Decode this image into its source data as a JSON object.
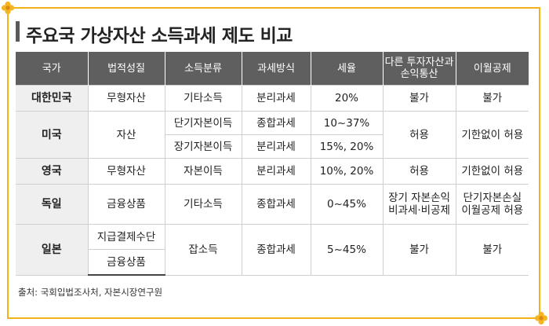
{
  "title": "주요국 가상자산 소득과세 제도 비교",
  "headers": [
    "국가",
    "법적성질",
    "소득분류",
    "과세방식",
    "세율",
    "다른 투자자산과 손익통산",
    "이월공제"
  ],
  "rows": {
    "korea": {
      "country": "대한민국",
      "nature": "무형자산",
      "income": "기타소득",
      "method": "분리과세",
      "rate": "20%",
      "offset": "불가",
      "carry": "불가"
    },
    "usa": {
      "country": "미국",
      "nature": "자산",
      "income_1": "단기자본이득",
      "method_1": "종합과세",
      "rate_1": "10~37%",
      "income_2": "장기자본이득",
      "method_2": "분리과세",
      "rate_2": "15%, 20%",
      "offset": "허용",
      "carry": "기한없이 허용"
    },
    "uk": {
      "country": "영국",
      "nature": "무형자산",
      "income": "자본이득",
      "method": "분리과세",
      "rate": "10%, 20%",
      "offset": "허용",
      "carry": "기한없이 허용"
    },
    "germany": {
      "country": "독일",
      "nature": "금융상품",
      "income": "기타소득",
      "method": "종합과세",
      "rate": "0~45%",
      "offset": "장기 자본손익 비과세·비공제",
      "carry": "단기자본손실 이월공제 허용"
    },
    "japan": {
      "country": "일본",
      "nature_1": "지급결제수단",
      "nature_2": "금융상품",
      "income": "잡소득",
      "method": "종합과세",
      "rate": "5~45%",
      "offset": "불가",
      "carry": "불가"
    }
  },
  "source": "출처: 국회입법조사처, 자본시장연구원",
  "colors": {
    "frame": "#f3b21a",
    "header_bg": "#5f5f5f",
    "country_bg": "#efefef"
  }
}
